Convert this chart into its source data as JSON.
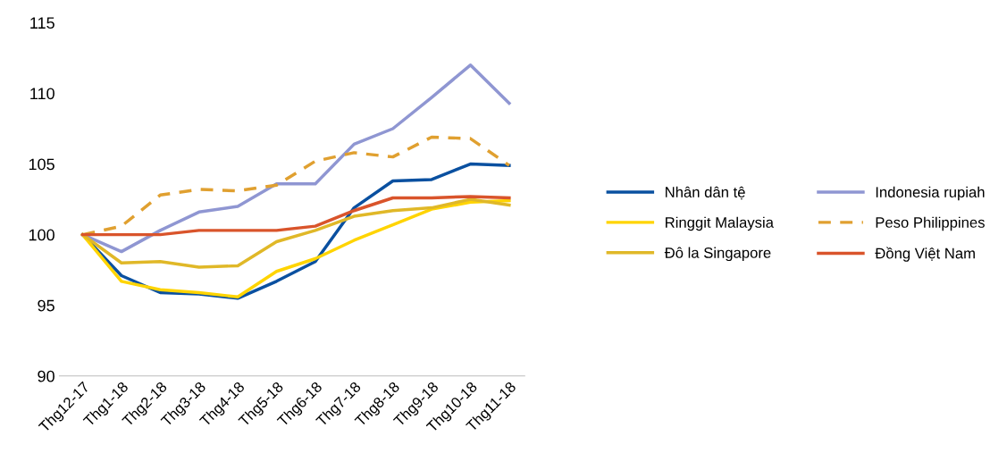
{
  "chart_data": {
    "type": "line",
    "categories": [
      "Thg12-17",
      "Thg1-18",
      "Thg2-18",
      "Thg3-18",
      "Thg4-18",
      "Thg5-18",
      "Thg6-18",
      "Thg7-18",
      "Thg8-18",
      "Thg9-18",
      "Thg10-18",
      "Thg11-18"
    ],
    "ylim": [
      90,
      115
    ],
    "yticks": [
      90,
      95,
      100,
      105,
      110,
      115
    ],
    "grid": false,
    "legend": "right",
    "marker": "none",
    "series": [
      {
        "name": "Nhân dân tệ",
        "color": "#0a50a0",
        "values": [
          100,
          97.1,
          95.9,
          95.8,
          95.5,
          96.7,
          98.1,
          101.9,
          103.8,
          103.9,
          105.0,
          104.9
        ]
      },
      {
        "name": "Indonesia rupiah",
        "color": "#8f96d2",
        "values": [
          100,
          98.8,
          100.3,
          101.6,
          102.0,
          103.6,
          103.6,
          106.4,
          107.5,
          109.7,
          112.0,
          109.3
        ]
      },
      {
        "name": "Ringgit Malaysia",
        "color": "#ffd400",
        "values": [
          100,
          96.7,
          96.1,
          95.9,
          95.6,
          97.4,
          98.3,
          99.6,
          100.7,
          101.8,
          102.3,
          102.4
        ]
      },
      {
        "name": "Peso Philippines",
        "color": "#e0a030",
        "line_style": "dashed",
        "values": [
          100,
          100.6,
          102.8,
          103.2,
          103.1,
          103.5,
          105.2,
          105.8,
          105.5,
          106.9,
          106.8,
          104.9
        ]
      },
      {
        "name": "Đô la Singapore",
        "color": "#e0b828",
        "values": [
          100,
          98.0,
          98.1,
          97.7,
          97.8,
          99.5,
          100.3,
          101.3,
          101.7,
          101.9,
          102.5,
          102.1
        ]
      },
      {
        "name": "Đồng Việt Nam",
        "color": "#d9542b",
        "values": [
          100,
          100.0,
          100.0,
          100.3,
          100.3,
          100.3,
          100.6,
          101.7,
          102.6,
          102.6,
          102.7,
          102.6
        ]
      }
    ]
  }
}
